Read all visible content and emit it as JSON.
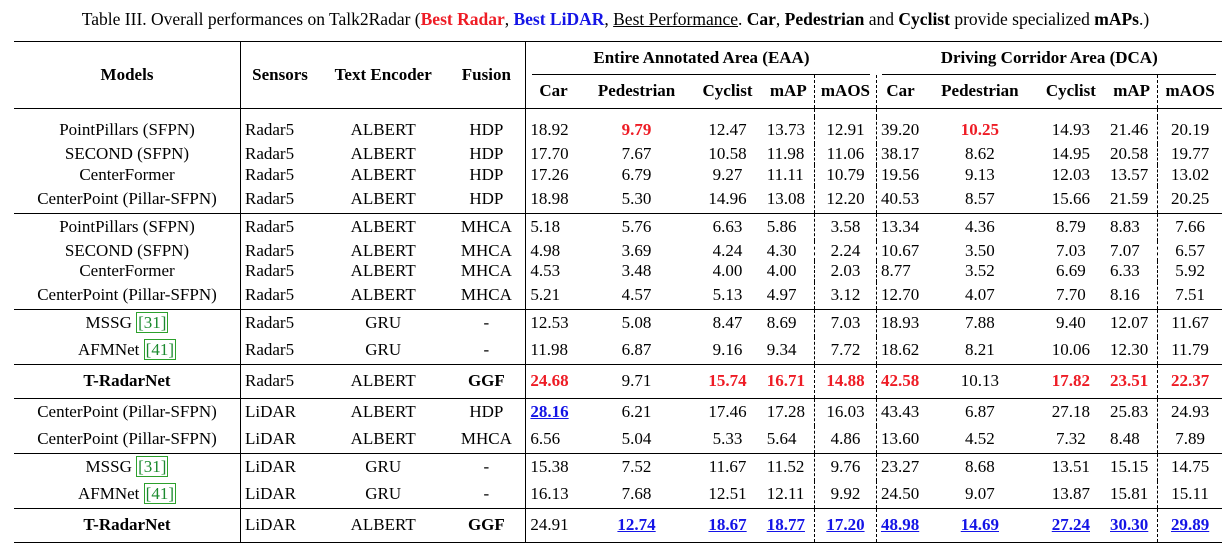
{
  "caption": {
    "prefix": "Table III. Overall performances on Talk2Radar (",
    "best_radar": "Best Radar",
    "sep1": ", ",
    "best_lidar": "Best LiDAR",
    "sep2": ", ",
    "best_perf": "Best Performance",
    "mid": ". ",
    "car": "Car",
    "comma": ", ",
    "ped": "Pedestrian",
    "and": " and ",
    "cyc": "Cyclist",
    "provide": " provide specialized ",
    "maps": "mAPs",
    "end": ".)"
  },
  "headers": {
    "models": "Models",
    "sensors": "Sensors",
    "text_encoder": "Text Encoder",
    "fusion": "Fusion",
    "eaa": "Entire Annotated Area (EAA)",
    "dca": "Driving Corridor Area (DCA)",
    "metrics": [
      "Car",
      "Pedestrian",
      "Cyclist",
      "mAP",
      "mAOS"
    ]
  },
  "groups": [
    {
      "rows": [
        {
          "model": "PointPillars (SFPN)",
          "sensor": "Radar5",
          "enc": "ALBERT",
          "fusion": "HDP",
          "eaa": [
            "18.92",
            "9.79",
            "12.47",
            "13.73",
            "12.91"
          ],
          "dca": [
            "39.20",
            "10.25",
            "14.93",
            "21.46",
            "20.19"
          ]
        },
        {
          "model": "SECOND (SFPN)",
          "sensor": "Radar5",
          "enc": "ALBERT",
          "fusion": "HDP",
          "eaa": [
            "17.70",
            "7.67",
            "10.58",
            "11.98",
            "11.06"
          ],
          "dca": [
            "38.17",
            "8.62",
            "14.95",
            "20.58",
            "19.77"
          ]
        },
        {
          "model": "CenterFormer",
          "sensor": "Radar5",
          "enc": "ALBERT",
          "fusion": "HDP",
          "eaa": [
            "17.26",
            "6.79",
            "9.27",
            "11.11",
            "10.79"
          ],
          "dca": [
            "19.56",
            "9.13",
            "12.03",
            "13.57",
            "13.02"
          ]
        },
        {
          "model": "CenterPoint (Pillar-SFPN)",
          "sensor": "Radar5",
          "enc": "ALBERT",
          "fusion": "HDP",
          "eaa": [
            "18.98",
            "5.30",
            "14.96",
            "13.08",
            "12.20"
          ],
          "dca": [
            "40.53",
            "8.57",
            "15.66",
            "21.59",
            "20.25"
          ]
        }
      ]
    },
    {
      "rows": [
        {
          "model": "PointPillars (SFPN)",
          "sensor": "Radar5",
          "enc": "ALBERT",
          "fusion": "MHCA",
          "eaa": [
            "5.18",
            "5.76",
            "6.63",
            "5.86",
            "3.58"
          ],
          "dca": [
            "13.34",
            "4.36",
            "8.79",
            "8.83",
            "7.66"
          ]
        },
        {
          "model": "SECOND (SFPN)",
          "sensor": "Radar5",
          "enc": "ALBERT",
          "fusion": "MHCA",
          "eaa": [
            "4.98",
            "3.69",
            "4.24",
            "4.30",
            "2.24"
          ],
          "dca": [
            "10.67",
            "3.50",
            "7.03",
            "7.07",
            "6.57"
          ]
        },
        {
          "model": "CenterFormer",
          "sensor": "Radar5",
          "enc": "ALBERT",
          "fusion": "MHCA",
          "eaa": [
            "4.53",
            "3.48",
            "4.00",
            "4.00",
            "2.03"
          ],
          "dca": [
            "8.77",
            "3.52",
            "6.69",
            "6.33",
            "5.92"
          ]
        },
        {
          "model": "CenterPoint (Pillar-SFPN)",
          "sensor": "Radar5",
          "enc": "ALBERT",
          "fusion": "MHCA",
          "eaa": [
            "5.21",
            "4.57",
            "5.13",
            "4.97",
            "3.12"
          ],
          "dca": [
            "12.70",
            "4.07",
            "7.70",
            "8.16",
            "7.51"
          ]
        }
      ]
    },
    {
      "rows": [
        {
          "model": "MSSG",
          "ref": "31",
          "sensor": "Radar5",
          "enc": "GRU",
          "fusion": "-",
          "eaa": [
            "12.53",
            "5.08",
            "8.47",
            "8.69",
            "7.03"
          ],
          "dca": [
            "18.93",
            "7.88",
            "9.40",
            "12.07",
            "11.67"
          ]
        },
        {
          "model": "AFMNet",
          "ref": "41",
          "sensor": "Radar5",
          "enc": "GRU",
          "fusion": "-",
          "eaa": [
            "11.98",
            "6.87",
            "9.16",
            "9.34",
            "7.72"
          ],
          "dca": [
            "18.62",
            "8.21",
            "10.06",
            "12.30",
            "11.79"
          ]
        }
      ]
    },
    {
      "rows": [
        {
          "model": "T-RadarNet",
          "bold": true,
          "sensor": "Radar5",
          "enc": "ALBERT",
          "fusion": "GGF",
          "eaa": [
            "24.68",
            "9.71",
            "15.74",
            "16.71",
            "14.88"
          ],
          "dca": [
            "42.58",
            "10.13",
            "17.82",
            "23.51",
            "22.37"
          ]
        }
      ]
    },
    {
      "rows": [
        {
          "model": "CenterPoint (Pillar-SFPN)",
          "sensor": "LiDAR",
          "enc": "ALBERT",
          "fusion": "HDP",
          "eaa": [
            "28.16",
            "6.21",
            "17.46",
            "17.28",
            "16.03"
          ],
          "dca": [
            "43.43",
            "6.87",
            "27.18",
            "25.83",
            "24.93"
          ]
        },
        {
          "model": "CenterPoint (Pillar-SFPN)",
          "sensor": "LiDAR",
          "enc": "ALBERT",
          "fusion": "MHCA",
          "eaa": [
            "6.56",
            "5.04",
            "5.33",
            "5.64",
            "4.86"
          ],
          "dca": [
            "13.60",
            "4.52",
            "7.32",
            "8.48",
            "7.89"
          ]
        }
      ]
    },
    {
      "rows": [
        {
          "model": "MSSG",
          "ref": "31",
          "sensor": "LiDAR",
          "enc": "GRU",
          "fusion": "-",
          "eaa": [
            "15.38",
            "7.52",
            "11.67",
            "11.52",
            "9.76"
          ],
          "dca": [
            "23.27",
            "8.68",
            "13.51",
            "15.15",
            "14.75"
          ]
        },
        {
          "model": "AFMNet",
          "ref": "41",
          "sensor": "LiDAR",
          "enc": "GRU",
          "fusion": "-",
          "eaa": [
            "16.13",
            "7.68",
            "12.51",
            "12.11",
            "9.92"
          ],
          "dca": [
            "24.50",
            "9.07",
            "13.87",
            "15.81",
            "15.11"
          ]
        }
      ]
    },
    {
      "rows": [
        {
          "model": "T-RadarNet",
          "bold": true,
          "sensor": "LiDAR",
          "enc": "ALBERT",
          "fusion": "GGF",
          "eaa": [
            "24.91",
            "12.74",
            "18.67",
            "18.77",
            "17.20"
          ],
          "dca": [
            "48.98",
            "14.69",
            "27.24",
            "30.30",
            "29.89"
          ]
        }
      ]
    }
  ],
  "highlights": {
    "red": [
      "0.0.eaa.1",
      "0.0.dca.1",
      "3.0.eaa.0",
      "3.0.eaa.2",
      "3.0.eaa.3",
      "3.0.eaa.4",
      "3.0.dca.0",
      "3.0.dca.2",
      "3.0.dca.3",
      "3.0.dca.4"
    ],
    "blue_underline": [
      "4.0.eaa.0",
      "6.0.eaa.1",
      "6.0.eaa.2",
      "6.0.eaa.3",
      "6.0.eaa.4",
      "6.0.dca.0",
      "6.0.dca.1",
      "6.0.dca.2",
      "6.0.dca.3",
      "6.0.dca.4"
    ],
    "colors": {
      "red": "#ee1c25",
      "blue": "#1414e6"
    }
  }
}
